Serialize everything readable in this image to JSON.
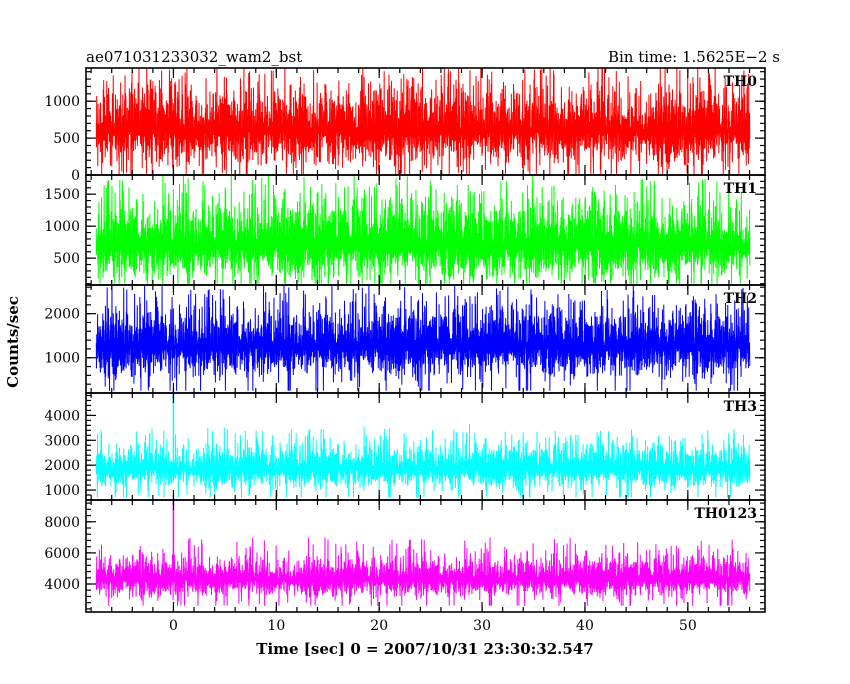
{
  "chart_data": {
    "type": "line",
    "title_left": "ae071031233032_wam2_bst",
    "title_right": "Bin time: 1.5625E−2 s",
    "xlabel": "Time [sec] 0 = 2007/10/31 23:30:32.547",
    "ylabel": "Counts/sec",
    "xlim": [
      -8.5,
      57.5
    ],
    "x_ticks": [
      0,
      10,
      20,
      30,
      40,
      50
    ],
    "x_minor_step": 2,
    "data_x_range": [
      -7.5,
      56
    ],
    "grid": false,
    "panels": [
      {
        "name": "TH0",
        "color": "#ff0000",
        "ylim": [
          0,
          1450
        ],
        "yticks": [
          0,
          500,
          1000
        ],
        "baseline": 600,
        "spread": 260,
        "spike_max": 1450,
        "floor": 0,
        "burst_peak": null
      },
      {
        "name": "TH1",
        "color": "#00ff00",
        "ylim": [
          80,
          1800
        ],
        "yticks": [
          500,
          1000,
          1500
        ],
        "baseline": 700,
        "spread": 300,
        "spike_max": 1750,
        "floor": 100,
        "burst_peak": null
      },
      {
        "name": "TH2",
        "color": "#0000ff",
        "ylim": [
          200,
          2650
        ],
        "yticks": [
          1000,
          2000
        ],
        "baseline": 1250,
        "spread": 380,
        "spike_max": 2600,
        "floor": 250,
        "burst_peak": null
      },
      {
        "name": "TH3",
        "color": "#00ffff",
        "ylim": [
          600,
          4900
        ],
        "yticks": [
          1000,
          2000,
          3000,
          4000
        ],
        "baseline": 1850,
        "spread": 420,
        "spike_max": 3500,
        "floor": 700,
        "burst_peak": 4900
      },
      {
        "name": "TH0123",
        "color": "#ff00ff",
        "ylim": [
          2200,
          9400
        ],
        "yticks": [
          4000,
          6000,
          8000
        ],
        "baseline": 4300,
        "spread": 620,
        "spike_max": 7000,
        "floor": 2600,
        "burst_peak": 9400
      }
    ]
  }
}
